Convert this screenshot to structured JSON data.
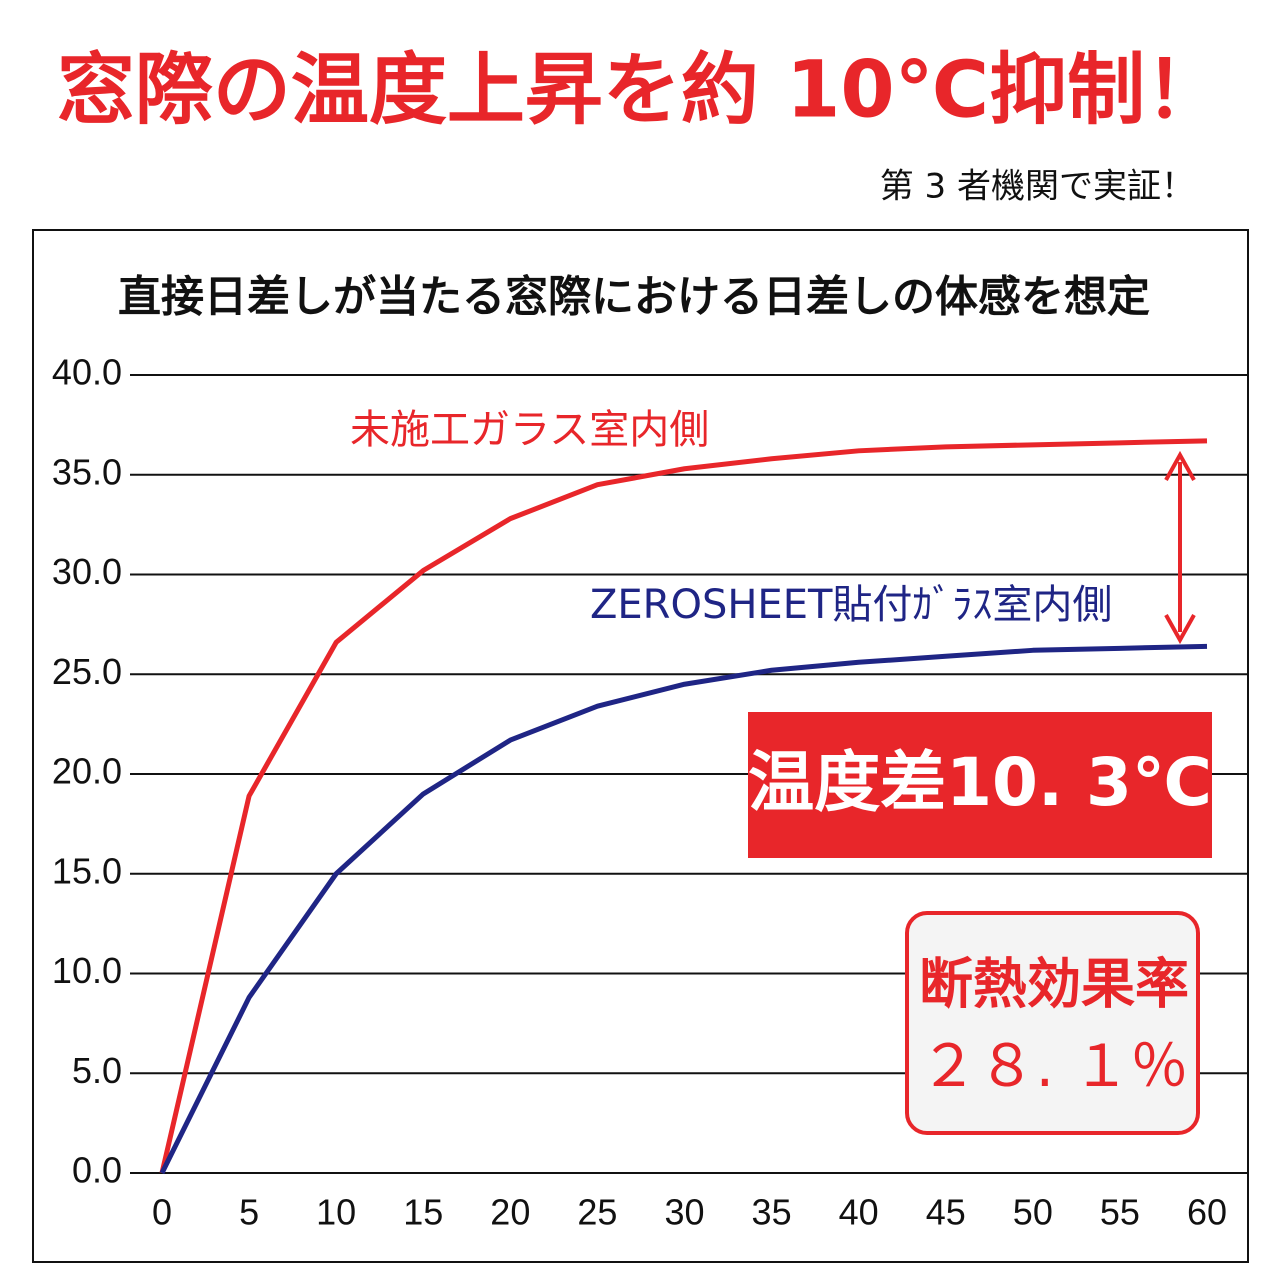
{
  "chart_data": {
    "type": "line",
    "title": "窓際の温度上昇を約 10℃抑制！",
    "subtitle": "第 3 者機関で実証！",
    "chart_title": "直接日差しが当たる窓際における日差しの体感を想定",
    "x": [
      0,
      5,
      10,
      15,
      20,
      25,
      30,
      35,
      40,
      45,
      50,
      55,
      60
    ],
    "series": [
      {
        "name": "未施工ガラス室内側",
        "color": "#e8262a",
        "values": [
          0,
          18.9,
          26.6,
          30.2,
          32.8,
          34.5,
          35.3,
          35.8,
          36.2,
          36.4,
          36.5,
          36.6,
          36.7
        ]
      },
      {
        "name": "ZEROSHEET貼付ｶﾞﾗｽ室内側",
        "color": "#1f2585",
        "values": [
          0,
          8.8,
          15.0,
          19.0,
          21.7,
          23.4,
          24.5,
          25.2,
          25.6,
          25.9,
          26.2,
          26.3,
          26.4
        ]
      }
    ],
    "xlim": [
      0,
      60
    ],
    "xticks": [
      0,
      5,
      10,
      15,
      20,
      25,
      30,
      35,
      40,
      45,
      50,
      55,
      60
    ],
    "ylim": [
      0,
      40
    ],
    "yticks": [
      {
        "value": 0,
        "label": "0.0"
      },
      {
        "value": 5,
        "label": "5.0"
      },
      {
        "value": 10,
        "label": "10.0"
      },
      {
        "value": 15,
        "label": "15.0"
      },
      {
        "value": 20,
        "label": "20.0"
      },
      {
        "value": 25,
        "label": "25.0"
      },
      {
        "value": 30,
        "label": "30.0"
      },
      {
        "value": 35,
        "label": "35.0"
      },
      {
        "value": 40,
        "label": "40.0"
      }
    ],
    "grid": true,
    "annotations": [
      "温度差10. 3℃",
      "断熱効果率",
      "２８. １％"
    ]
  }
}
